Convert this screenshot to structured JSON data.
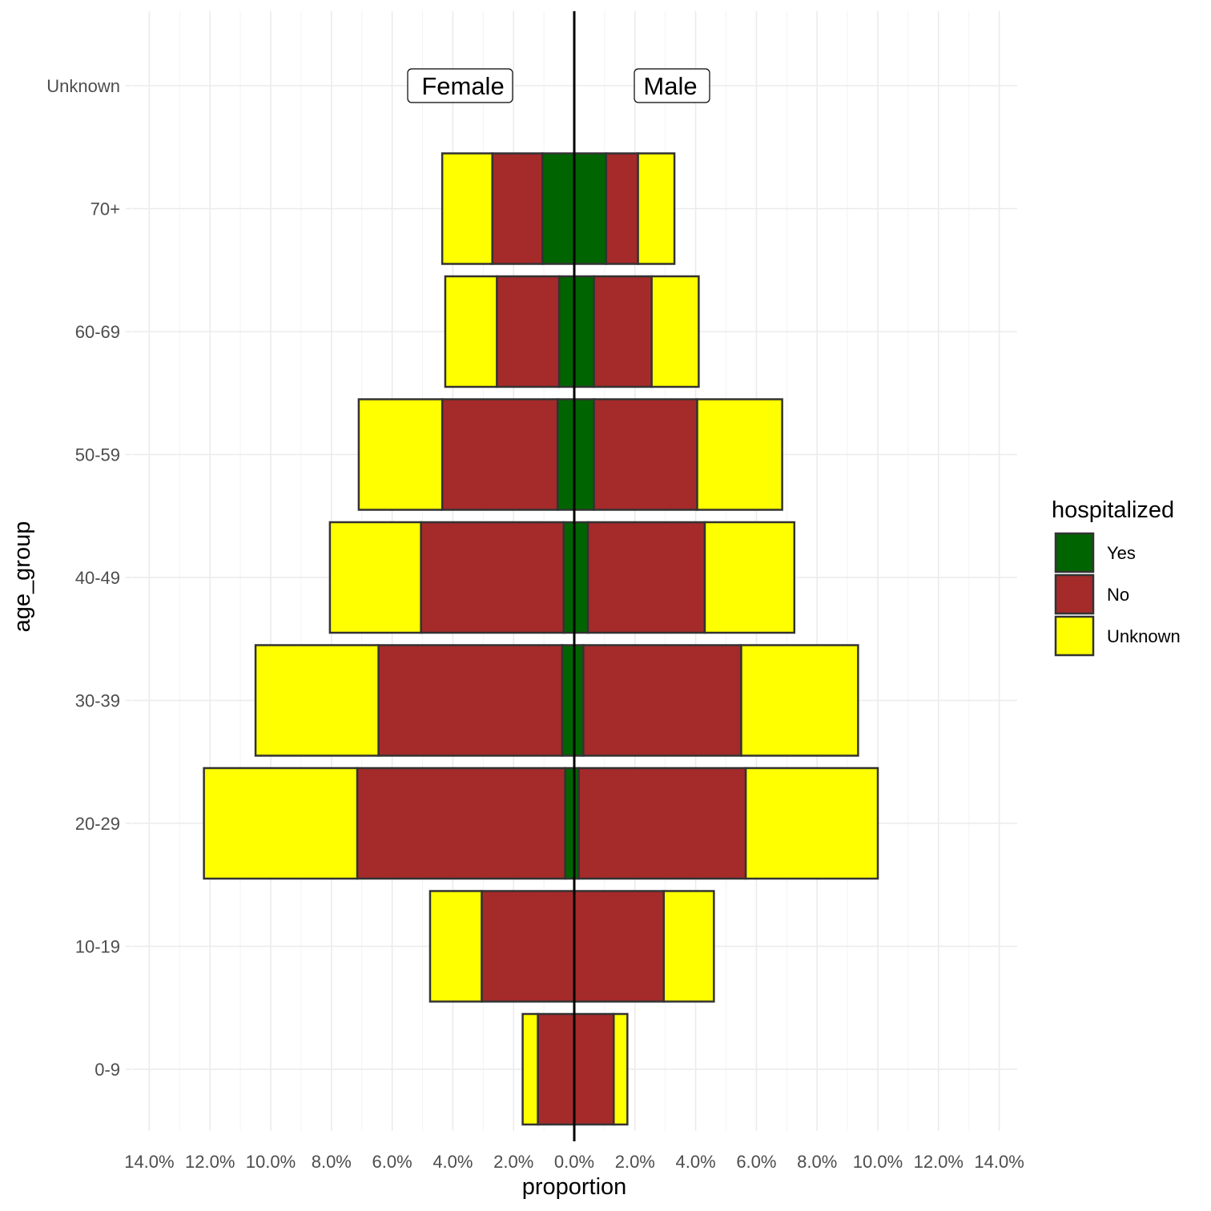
{
  "chart_data": {
    "type": "bar",
    "orientation": "horizontal",
    "xlabel": "proportion",
    "ylabel": "age_group",
    "xlim": [
      -14.5,
      14.5
    ],
    "x_ticks": [
      -14,
      -12,
      -10,
      -8,
      -6,
      -4,
      -2,
      0,
      2,
      4,
      6,
      8,
      10,
      12,
      14
    ],
    "x_tick_labels": [
      "14.0%",
      "12.0%",
      "10.0%",
      "8.0%",
      "6.0%",
      "4.0%",
      "2.0%",
      "0.0%",
      "2.0%",
      "4.0%",
      "6.0%",
      "8.0%",
      "10.0%",
      "12.0%",
      "14.0%"
    ],
    "categories": [
      "0-9",
      "10-19",
      "20-29",
      "30-39",
      "40-49",
      "50-59",
      "60-69",
      "70+",
      "Unknown"
    ],
    "grid": true,
    "annotations": {
      "female": "Female",
      "male": "Male"
    },
    "legend": {
      "title": "hospitalized",
      "position": "right",
      "items": [
        {
          "label": "Yes",
          "color": "#006400"
        },
        {
          "label": "No",
          "color": "#a52a2a"
        },
        {
          "label": "Unknown",
          "color": "#ffff00"
        }
      ]
    },
    "series": [
      {
        "name": "Yes",
        "gender": "Female",
        "values": [
          0,
          0,
          0.3,
          0.4,
          0.35,
          0.55,
          0.5,
          1.05,
          0
        ]
      },
      {
        "name": "No",
        "gender": "Female",
        "values": [
          1.2,
          3.05,
          6.85,
          6.05,
          4.7,
          3.8,
          2.05,
          1.65,
          0
        ]
      },
      {
        "name": "Unknown",
        "gender": "Female",
        "values": [
          0.5,
          1.7,
          5.05,
          4.05,
          3.0,
          2.75,
          1.7,
          1.65,
          0
        ]
      },
      {
        "name": "Yes",
        "gender": "Male",
        "values": [
          0,
          0,
          0.15,
          0.3,
          0.45,
          0.65,
          0.65,
          1.05,
          0
        ]
      },
      {
        "name": "No",
        "gender": "Male",
        "values": [
          1.3,
          2.95,
          5.5,
          5.2,
          3.85,
          3.4,
          1.9,
          1.05,
          0
        ]
      },
      {
        "name": "Unknown",
        "gender": "Male",
        "values": [
          0.45,
          1.65,
          4.35,
          3.85,
          2.95,
          2.8,
          1.55,
          1.2,
          0
        ]
      }
    ]
  }
}
